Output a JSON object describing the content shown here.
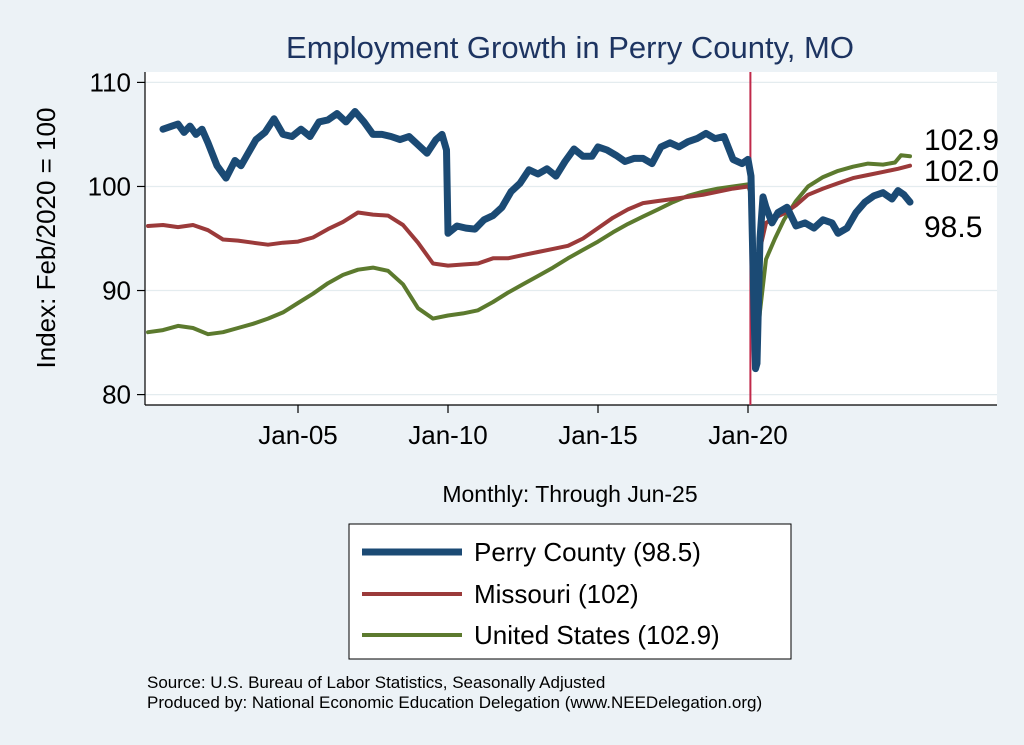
{
  "chart_data": {
    "type": "line",
    "title": "Employment Growth in Perry  County, MO",
    "ylabel": "Index: Feb/2020 = 100",
    "xlabel_note": "Monthly: Through Jun-25",
    "ylim": [
      79,
      111
    ],
    "xlim": [
      1999.9,
      2028.3
    ],
    "yticks": [
      80,
      90,
      100,
      110
    ],
    "xticks": [
      {
        "value": 2005.0,
        "label": "Jan-05"
      },
      {
        "value": 2010.0,
        "label": "Jan-10"
      },
      {
        "value": 2015.0,
        "label": "Jan-15"
      },
      {
        "value": 2020.0,
        "label": "Jan-20"
      }
    ],
    "reference_line_x": 2020.08,
    "grid": true,
    "legend_placement": "bottom",
    "end_labels": [
      "102.9",
      "102.0",
      "98.5"
    ],
    "series": [
      {
        "name": "Perry  County",
        "legend_label": "Perry  County (98.5)",
        "color": "#1b4a74",
        "x": [
          2000.5,
          2000.8,
          2001.0,
          2001.2,
          2001.4,
          2001.6,
          2001.8,
          2002.0,
          2002.3,
          2002.6,
          2002.9,
          2003.1,
          2003.3,
          2003.6,
          2003.9,
          2004.2,
          2004.5,
          2004.8,
          2005.1,
          2005.4,
          2005.7,
          2006.0,
          2006.3,
          2006.6,
          2006.9,
          2007.2,
          2007.5,
          2007.8,
          2008.1,
          2008.4,
          2008.7,
          2009.0,
          2009.3,
          2009.6,
          2009.8,
          2009.95,
          2010.0,
          2010.3,
          2010.6,
          2010.9,
          2011.2,
          2011.5,
          2011.8,
          2012.1,
          2012.4,
          2012.7,
          2013.0,
          2013.3,
          2013.6,
          2013.9,
          2014.2,
          2014.5,
          2014.8,
          2015.0,
          2015.3,
          2015.6,
          2015.9,
          2016.2,
          2016.5,
          2016.8,
          2017.1,
          2017.4,
          2017.7,
          2018.0,
          2018.3,
          2018.6,
          2018.9,
          2019.2,
          2019.5,
          2019.8,
          2020.0,
          2020.1,
          2020.2,
          2020.25,
          2020.3,
          2020.4,
          2020.5,
          2020.6,
          2020.8,
          2021.0,
          2021.3,
          2021.6,
          2021.9,
          2022.2,
          2022.5,
          2022.8,
          2023.0,
          2023.3,
          2023.6,
          2023.9,
          2024.2,
          2024.5,
          2024.8,
          2025.0,
          2025.2,
          2025.4
        ],
        "values": [
          105.5,
          105.8,
          106.0,
          105.2,
          105.8,
          105.0,
          105.5,
          104.2,
          102.0,
          100.8,
          102.5,
          102.0,
          103.0,
          104.5,
          105.2,
          106.5,
          105.0,
          104.8,
          105.5,
          104.8,
          106.2,
          106.4,
          107.0,
          106.2,
          107.2,
          106.2,
          105.0,
          105.0,
          104.8,
          104.5,
          104.8,
          104.0,
          103.2,
          104.5,
          105.0,
          103.5,
          95.5,
          96.2,
          96.0,
          95.9,
          96.8,
          97.2,
          98.0,
          99.5,
          100.3,
          101.6,
          101.2,
          101.7,
          101.0,
          102.4,
          103.6,
          102.9,
          102.9,
          103.8,
          103.5,
          103.0,
          102.4,
          102.7,
          102.7,
          102.2,
          103.8,
          104.2,
          103.8,
          104.3,
          104.6,
          105.1,
          104.6,
          104.8,
          102.6,
          102.2,
          102.6,
          101.0,
          88.0,
          82.5,
          83.0,
          95.0,
          99.0,
          98.0,
          96.5,
          97.5,
          98.0,
          96.2,
          96.5,
          96.0,
          96.8,
          96.5,
          95.5,
          96.0,
          97.5,
          98.5,
          99.1,
          99.4,
          98.8,
          99.6,
          99.2,
          98.5
        ]
      },
      {
        "name": "Missouri",
        "legend_label": "Missouri (102)",
        "color": "#9b3a3a",
        "x": [
          2000.0,
          2000.5,
          2001.0,
          2001.5,
          2002.0,
          2002.5,
          2003.0,
          2003.5,
          2004.0,
          2004.5,
          2005.0,
          2005.5,
          2006.0,
          2006.5,
          2007.0,
          2007.5,
          2008.0,
          2008.5,
          2009.0,
          2009.5,
          2010.0,
          2010.5,
          2011.0,
          2011.5,
          2012.0,
          2012.5,
          2013.0,
          2013.5,
          2014.0,
          2014.5,
          2015.0,
          2015.5,
          2016.0,
          2016.5,
          2017.0,
          2017.5,
          2018.0,
          2018.5,
          2019.0,
          2019.5,
          2020.0,
          2020.1,
          2020.2,
          2020.3,
          2020.4,
          2020.6,
          2020.9,
          2021.2,
          2021.6,
          2022.0,
          2022.5,
          2023.0,
          2023.5,
          2024.0,
          2024.5,
          2025.0,
          2025.4
        ],
        "values": [
          96.2,
          96.3,
          96.1,
          96.3,
          95.8,
          94.9,
          94.8,
          94.6,
          94.4,
          94.6,
          94.7,
          95.1,
          95.9,
          96.6,
          97.5,
          97.3,
          97.2,
          96.3,
          94.6,
          92.6,
          92.4,
          92.5,
          92.6,
          93.1,
          93.1,
          93.4,
          93.7,
          94.0,
          94.3,
          95.0,
          96.0,
          97.0,
          97.8,
          98.4,
          98.6,
          98.8,
          99.0,
          99.2,
          99.5,
          99.8,
          100.0,
          99.5,
          92.0,
          90.2,
          94.0,
          96.5,
          97.0,
          97.4,
          98.2,
          99.2,
          99.8,
          100.3,
          100.8,
          101.1,
          101.4,
          101.7,
          102.0
        ]
      },
      {
        "name": "United States",
        "legend_label": "United States (102.9)",
        "color": "#5c7a2e",
        "x": [
          2000.0,
          2000.5,
          2001.0,
          2001.5,
          2002.0,
          2002.5,
          2003.0,
          2003.5,
          2004.0,
          2004.5,
          2005.0,
          2005.5,
          2006.0,
          2006.5,
          2007.0,
          2007.5,
          2008.0,
          2008.5,
          2009.0,
          2009.5,
          2010.0,
          2010.5,
          2011.0,
          2011.5,
          2012.0,
          2012.5,
          2013.0,
          2013.5,
          2014.0,
          2014.5,
          2015.0,
          2015.5,
          2016.0,
          2016.5,
          2017.0,
          2017.5,
          2018.0,
          2018.5,
          2019.0,
          2019.5,
          2020.0,
          2020.1,
          2020.2,
          2020.3,
          2020.4,
          2020.6,
          2020.9,
          2021.2,
          2021.6,
          2022.0,
          2022.5,
          2023.0,
          2023.5,
          2024.0,
          2024.5,
          2024.9,
          2025.1,
          2025.4
        ],
        "values": [
          86.0,
          86.2,
          86.6,
          86.4,
          85.8,
          86.0,
          86.4,
          86.8,
          87.3,
          87.9,
          88.8,
          89.7,
          90.7,
          91.5,
          92.0,
          92.2,
          91.9,
          90.6,
          88.3,
          87.3,
          87.6,
          87.8,
          88.1,
          88.9,
          89.8,
          90.6,
          91.4,
          92.2,
          93.1,
          93.9,
          94.7,
          95.6,
          96.4,
          97.1,
          97.8,
          98.5,
          99.1,
          99.5,
          99.8,
          100.0,
          100.2,
          99.2,
          92.0,
          84.8,
          88.0,
          93.0,
          95.0,
          96.8,
          98.6,
          100.0,
          100.9,
          101.5,
          101.9,
          102.2,
          102.1,
          102.3,
          103.0,
          102.9
        ]
      }
    ]
  },
  "footer": {
    "source": "Source: U.S. Bureau of Labor Statistics, Seasonally Adjusted",
    "producer": "Produced by: National Economic Education Delegation (www.NEEDelegation.org)"
  }
}
